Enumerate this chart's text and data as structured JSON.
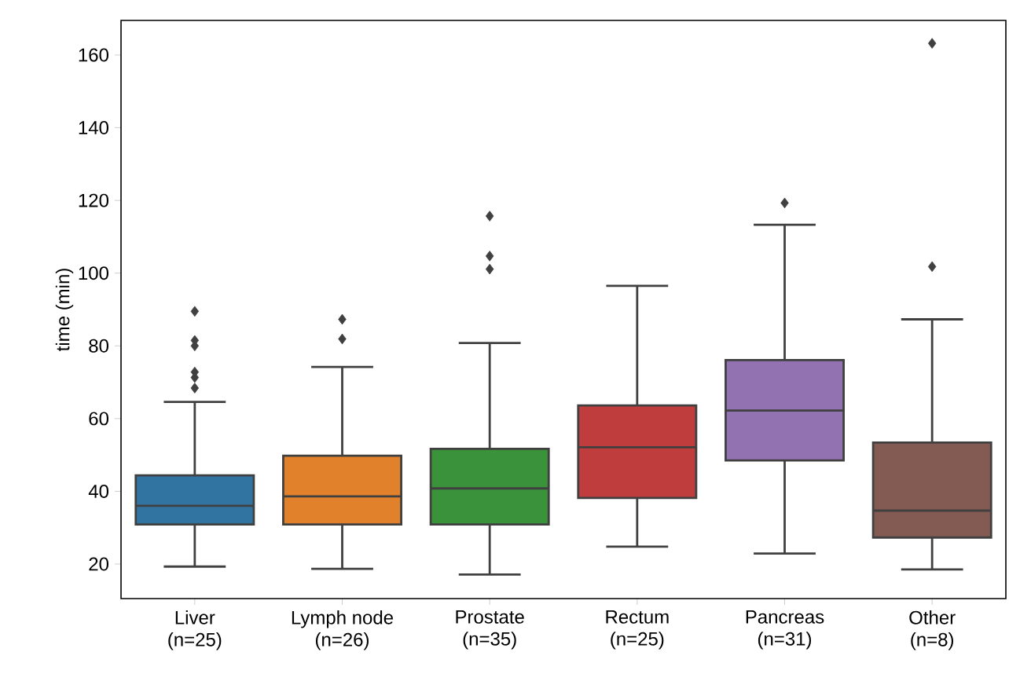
{
  "chart_data": {
    "type": "box",
    "ylabel": "time (min)",
    "categories": [
      "Liver\n(n=25)",
      "Lymph node\n(n=26)",
      "Prostate\n(n=35)",
      "Rectum\n(n=25)",
      "Pancreas\n(n=31)",
      "Other\n(n=8)"
    ],
    "colors": [
      "#3274a1",
      "#e1812c",
      "#3a923a",
      "#c03d3e",
      "#9372b2",
      "#845b53"
    ],
    "ylim": [
      10.5,
      169.5
    ],
    "yticks": [
      20,
      40,
      60,
      80,
      100,
      120,
      140,
      160
    ],
    "marker": "diamond",
    "boxes": [
      {
        "low": 19.3,
        "q1": 30.9,
        "median": 36.0,
        "q3": 44.4,
        "high": 64.6,
        "outliers": [
          68.4,
          71.3,
          72.8,
          80.0,
          81.5,
          89.5
        ]
      },
      {
        "low": 18.7,
        "q1": 30.9,
        "median": 38.6,
        "q3": 49.8,
        "high": 74.2,
        "outliers": [
          81.9,
          87.3
        ]
      },
      {
        "low": 17.1,
        "q1": 30.9,
        "median": 40.8,
        "q3": 51.7,
        "high": 80.8,
        "outliers": [
          101.1,
          104.7,
          115.7
        ]
      },
      {
        "low": 24.8,
        "q1": 38.2,
        "median": 52.1,
        "q3": 63.6,
        "high": 96.5
      },
      {
        "low": 22.9,
        "q1": 48.5,
        "median": 62.2,
        "q3": 76.1,
        "high": 113.3,
        "outliers": [
          119.3
        ]
      },
      {
        "low": 18.5,
        "q1": 27.3,
        "median": 34.7,
        "q3": 53.4,
        "high": 87.3,
        "outliers": [
          101.8,
          163.2
        ]
      }
    ]
  }
}
